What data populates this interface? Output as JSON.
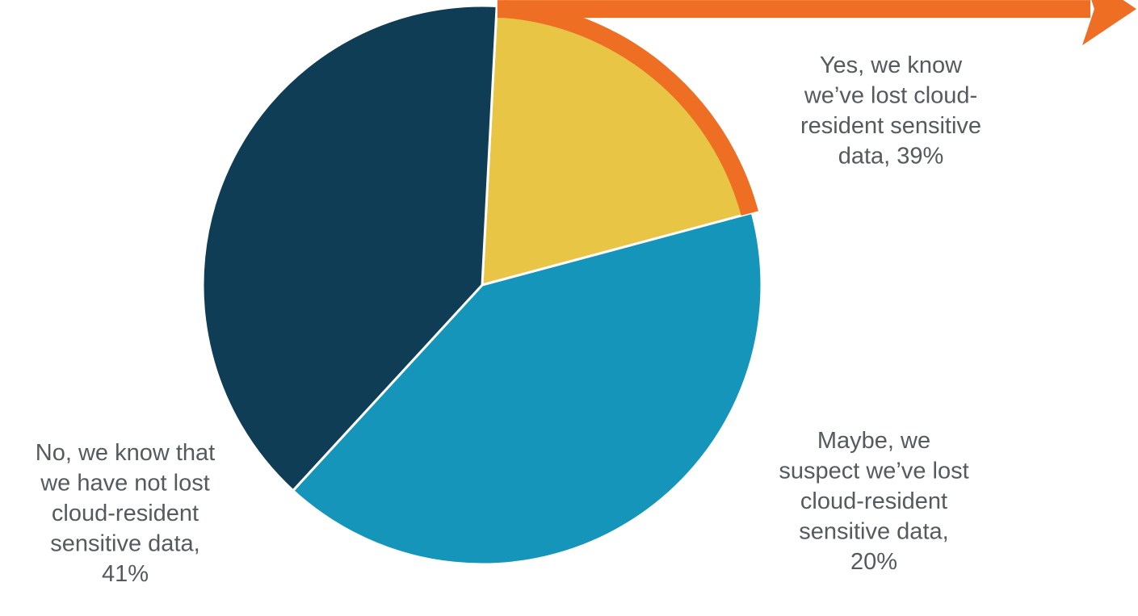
{
  "chart_data": {
    "type": "pie",
    "start_angle_deg": 87,
    "direction": "clockwise",
    "slices": [
      {
        "label": "Maybe, we suspect we’ve lost cloud-resident sensitive data",
        "value": 20,
        "value_label": "20%",
        "color": "#E8C545",
        "label_lines": [
          "Maybe, we",
          "suspect we’ve lost",
          "cloud-resident",
          "sensitive data,",
          "20%"
        ]
      },
      {
        "label": "No, we know that we have not lost cloud-resident sensitive data",
        "value": 41,
        "value_label": "41%",
        "color": "#1595BA",
        "label_lines": [
          "No, we know that",
          "we have not lost",
          "cloud-resident",
          "sensitive data,",
          "41%"
        ]
      },
      {
        "label": "Yes, we know we’ve lost cloud-resident sensitive data",
        "value": 39,
        "value_label": "39%",
        "color": "#0F3D56",
        "label_lines": [
          "Yes, we know",
          "we’ve lost cloud-",
          "resident sensitive",
          "data, 39%"
        ]
      }
    ],
    "highlight": {
      "slice": "Maybe, we suspect we’ve lost cloud-resident sensitive data",
      "color": "#EE6E24",
      "style": "outline arc with arrow pointing right"
    },
    "label_color": "#555A5E",
    "slice_border_color": "#FFFFFF"
  }
}
